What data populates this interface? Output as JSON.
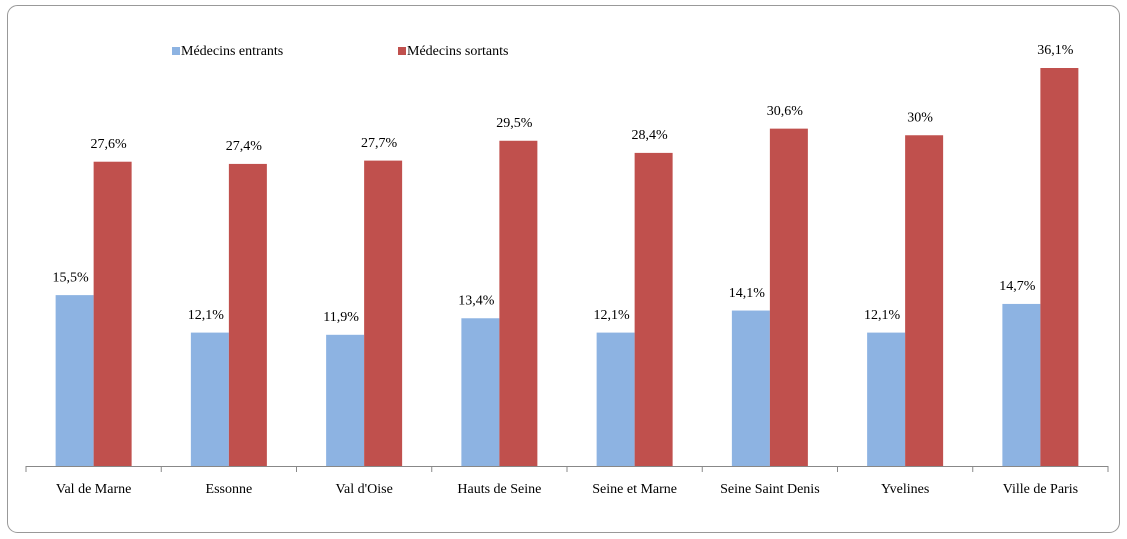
{
  "chart_data": {
    "type": "bar",
    "categories": [
      "Val de Marne",
      "Essonne",
      "Val d'Oise",
      "Hauts de Seine",
      "Seine et Marne",
      "Seine Saint Denis",
      "Yvelines",
      "Ville de Paris"
    ],
    "series": [
      {
        "name": "Médecins entrants",
        "color": "#8db3e2",
        "values": [
          15.5,
          12.1,
          11.9,
          13.4,
          12.1,
          14.1,
          12.1,
          14.7
        ],
        "value_labels": [
          "15,5%",
          "12,1%",
          "11,9%",
          "13,4%",
          "12,1%",
          "14,1%",
          "12,1%",
          "14,7%"
        ]
      },
      {
        "name": "Médecins sortants",
        "color": "#c0504d",
        "values": [
          27.6,
          27.4,
          27.7,
          29.5,
          28.4,
          30.6,
          30,
          36.1
        ],
        "value_labels": [
          "27,6%",
          "27,4%",
          "27,7%",
          "29,5%",
          "28,4%",
          "30,6%",
          "30%",
          "36,1%"
        ]
      }
    ],
    "legend": "top-left"
  }
}
